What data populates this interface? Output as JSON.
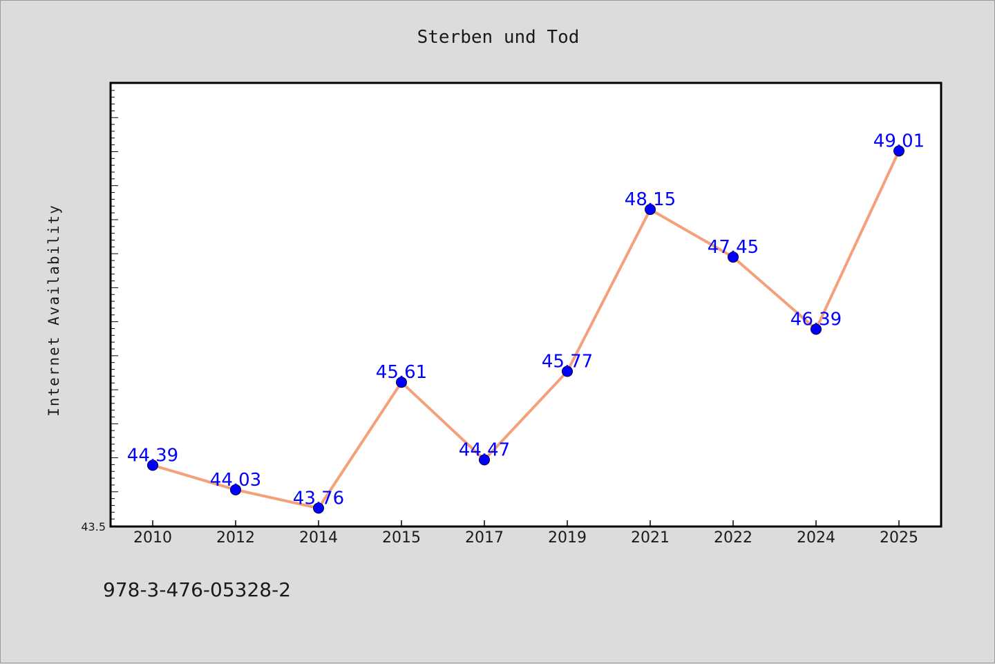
{
  "chart_data": {
    "type": "line",
    "title": "Sterben und Tod",
    "xlabel": "",
    "ylabel": "Internet Availability",
    "categories": [
      "2010",
      "2012",
      "2014",
      "2015",
      "2017",
      "2019",
      "2021",
      "2022",
      "2024",
      "2025"
    ],
    "series": [
      {
        "values": [
          44.39,
          44.03,
          43.76,
          45.61,
          44.47,
          45.77,
          48.15,
          47.45,
          46.39,
          49.01
        ]
      }
    ],
    "data_labels": [
      "44.39",
      "44.03",
      "43.76",
      "45.61",
      "44.47",
      "45.77",
      "48.15",
      "47.45",
      "46.39",
      "49.01"
    ],
    "ylim": [
      43.5,
      50.0
    ],
    "y_tick_label": "43.5",
    "grid": false,
    "legend": "none",
    "colors": {
      "line": "#f4a07a",
      "marker": "#0000ff",
      "data_label": "#0000ff",
      "plot_background": "#ffffff",
      "page_background": "#dcdcdc"
    }
  },
  "footer": {
    "isbn": "978-3-476-05328-2"
  }
}
